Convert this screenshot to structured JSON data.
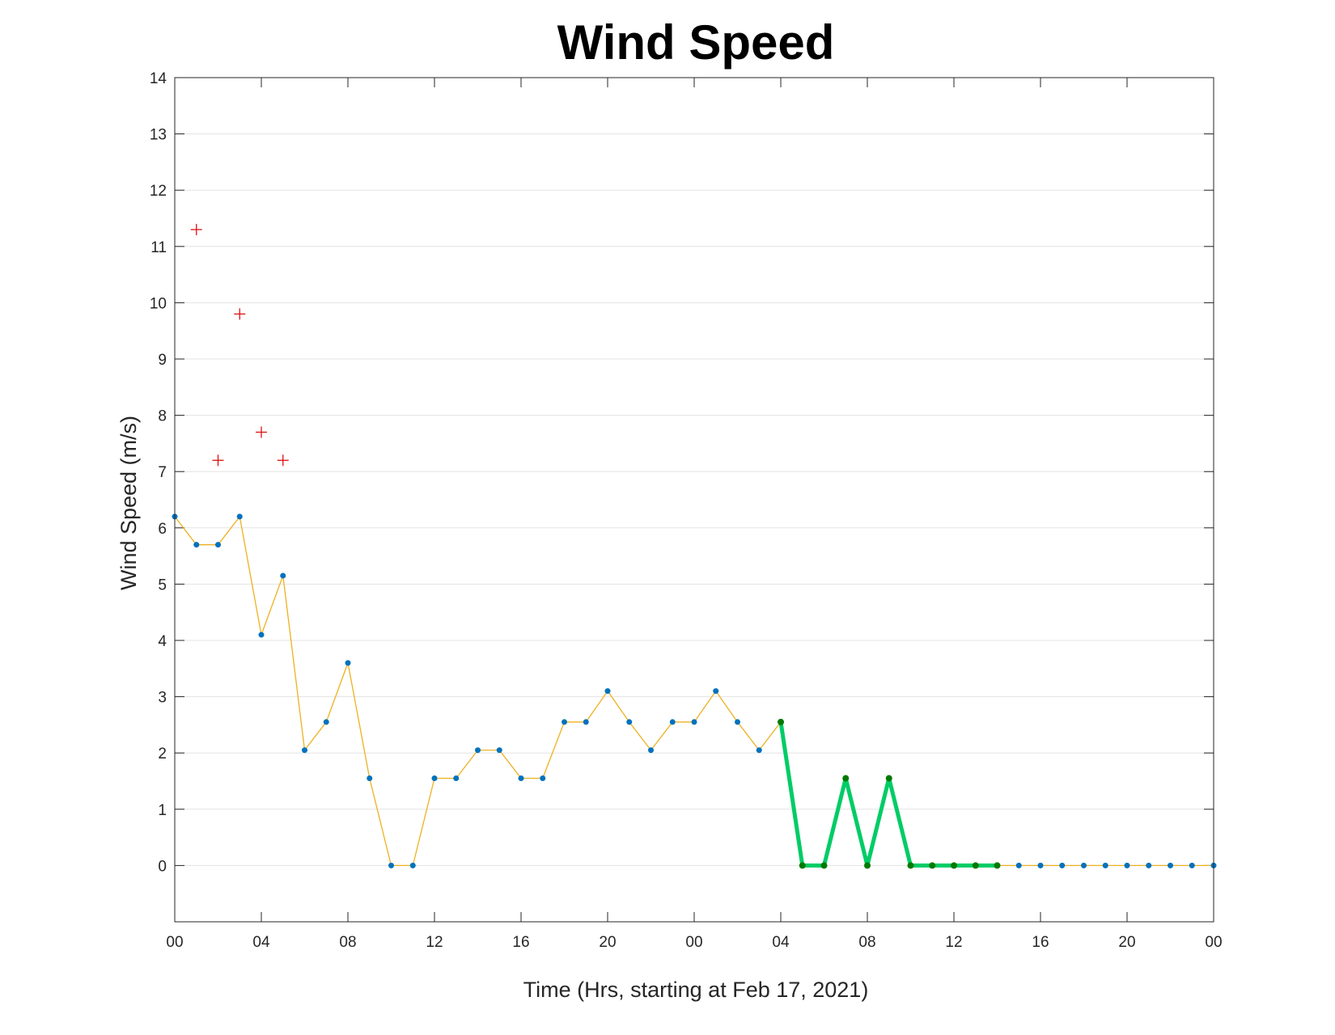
{
  "chart_data": {
    "type": "line",
    "title": "Wind Speed",
    "xlabel": "Time (Hrs, starting at Feb 17, 2021)",
    "ylabel": "Wind Speed (m/s)",
    "x_unit": "hours",
    "xlim": [
      0,
      48
    ],
    "ylim": [
      -1,
      14
    ],
    "yticks": [
      0,
      1,
      2,
      3,
      4,
      5,
      6,
      7,
      8,
      9,
      10,
      11,
      12,
      13,
      14
    ],
    "xticks": [
      0,
      4,
      8,
      12,
      16,
      20,
      24,
      28,
      32,
      36,
      40,
      44,
      48
    ],
    "xtick_labels": [
      "00",
      "04",
      "08",
      "12",
      "16",
      "20",
      "00",
      "04",
      "08",
      "12",
      "16",
      "20",
      "00"
    ],
    "grid": true,
    "legend": "none",
    "colors": {
      "line": "#EDB120",
      "points": "#0072BD",
      "highlight_line": "#00CC66",
      "highlight_points": "#007A00",
      "outliers": "#E01010"
    },
    "series": [
      {
        "role": "measured",
        "style": "thin orange line with blue dot markers",
        "x": [
          0,
          1,
          2,
          3,
          4,
          5,
          6,
          7,
          8,
          9,
          10,
          11,
          12,
          13,
          14,
          15,
          16,
          17,
          18,
          19,
          20,
          21,
          22,
          23,
          24,
          25,
          26,
          27,
          28,
          29,
          30,
          31,
          32,
          33,
          34,
          35,
          36,
          37,
          38,
          39,
          40,
          41,
          42,
          43,
          44,
          45,
          46,
          47,
          48
        ],
        "y": [
          6.2,
          5.7,
          5.7,
          6.2,
          4.1,
          5.15,
          2.05,
          2.55,
          3.6,
          1.55,
          0,
          0,
          1.55,
          1.55,
          2.05,
          2.05,
          1.55,
          1.55,
          2.55,
          2.55,
          3.1,
          2.55,
          2.05,
          2.55,
          2.55,
          3.1,
          2.55,
          2.05,
          2.55,
          0,
          0,
          1.55,
          0,
          1.55,
          0,
          0,
          0,
          0,
          0,
          0,
          0,
          0,
          0,
          0,
          0,
          0,
          0,
          0,
          0
        ]
      },
      {
        "role": "highlighted",
        "style": "thick green line with dark green dot markers",
        "x": [
          28,
          29,
          30,
          31,
          32,
          33,
          34,
          35,
          36,
          37,
          38
        ],
        "y": [
          2.55,
          0,
          0,
          1.55,
          0,
          1.55,
          0,
          0,
          0,
          0,
          0
        ]
      },
      {
        "role": "outliers",
        "style": "red plus markers",
        "x": [
          1,
          2,
          3,
          4,
          5
        ],
        "y": [
          11.3,
          7.2,
          9.8,
          7.7,
          7.2
        ]
      }
    ]
  }
}
